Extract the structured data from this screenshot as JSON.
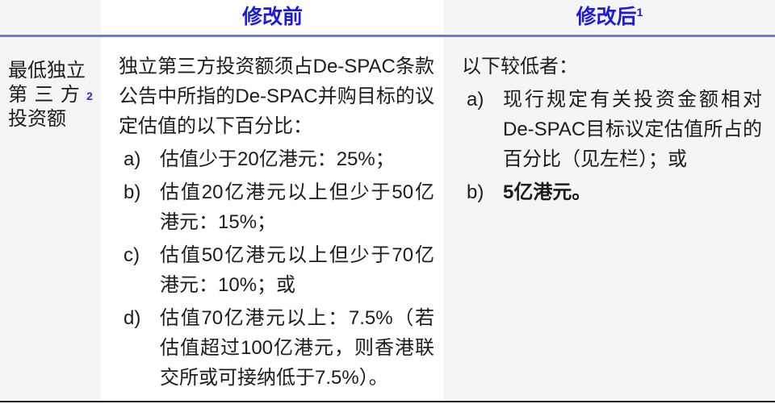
{
  "table": {
    "header": {
      "before_label": "修改前",
      "before_sup": "",
      "after_label": "修改后",
      "after_sup": "1"
    },
    "row_header": {
      "line1": "最低独立",
      "line2_chars": [
        "第",
        "三",
        "方"
      ],
      "line2_sup": "2",
      "line3": "投资额"
    },
    "before": {
      "intro": "独立第三方投资额须占De-SPAC条款公告中所指的De-SPAC并购目标的议定估值的以下百分比：",
      "items": [
        {
          "marker": "a)",
          "text": "估值少于20亿港元：25%；"
        },
        {
          "marker": "b)",
          "text": "估值20亿港元以上但少于50亿港元：15%；"
        },
        {
          "marker": "c)",
          "text": "估值50亿港元以上但少于70亿港元：10%；或"
        },
        {
          "marker": "d)",
          "text": "估值70亿港元以上：7.5%（若估值超过100亿港元，则香港联交所或可接纳低于7.5%）。"
        }
      ]
    },
    "after": {
      "intro": "以下较低者：",
      "items": [
        {
          "marker": "a)",
          "text": "现行规定有关投资金额相对De-SPAC目标议定估值所占的百分比（见左栏）；或"
        },
        {
          "marker": "b)",
          "text": "5亿港元。"
        }
      ]
    }
  },
  "colors": {
    "header_blue": "#1b1be0",
    "divider_blue": "#7173e8",
    "bottom_border": "#1e1e24",
    "shaded_bg": "#f5f5f7",
    "text": "#1c1c1c"
  }
}
